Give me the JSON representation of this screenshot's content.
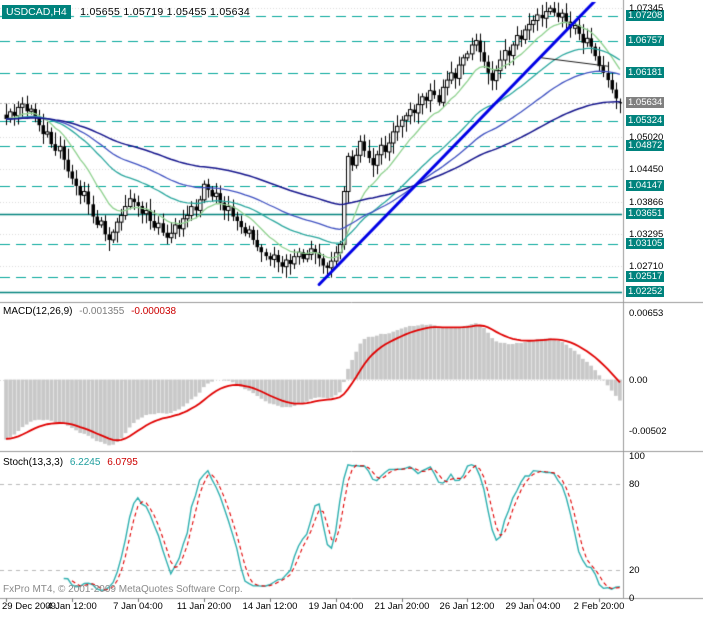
{
  "window": {
    "symbol_title": "USDCAD,H4",
    "quote_text": "1.05655 1.05719 1.05455 1.05634"
  },
  "footer": {
    "copyright": "FxPro MT4, © 2001-2009 MetaQuotes Software Corp."
  },
  "chart_data": {
    "type": "candlestick",
    "symbol": "USDCAD",
    "timeframe": "H4",
    "current_bar": {
      "open": 1.05655,
      "high": 1.05719,
      "low": 1.05455,
      "close": 1.05634
    },
    "current_price_label": "1.05634",
    "y_axis": {
      "range": [
        1.0212,
        1.0738
      ],
      "plain_labels": [
        "1.07345",
        "1.05020",
        "1.04450",
        "1.03866",
        "1.03295",
        "1.02710"
      ]
    },
    "levels": [
      {
        "price": 1.07208,
        "style": "dash"
      },
      {
        "price": 1.06757,
        "style": "dash"
      },
      {
        "price": 1.06181,
        "style": "dash"
      },
      {
        "price": 1.05324,
        "style": "dash"
      },
      {
        "price": 1.04872,
        "style": "dash"
      },
      {
        "price": 1.04147,
        "style": "dash"
      },
      {
        "price": 1.03651,
        "style": "solid"
      },
      {
        "price": 1.03105,
        "style": "dash"
      },
      {
        "price": 1.02517,
        "style": "dash"
      },
      {
        "price": 1.02252,
        "style": "solid"
      }
    ],
    "x_labels": [
      {
        "index": 0,
        "label": "29 Dec 2009"
      },
      {
        "index": 16,
        "label": "4 Jan 12:00"
      },
      {
        "index": 32,
        "label": "7 Jan 04:00"
      },
      {
        "index": 48,
        "label": "11 Jan 20:00"
      },
      {
        "index": 64,
        "label": "14 Jan 12:00"
      },
      {
        "index": 80,
        "label": "19 Jan 04:00"
      },
      {
        "index": 96,
        "label": "21 Jan 20:00"
      },
      {
        "index": 112,
        "label": "26 Jan 12:00"
      },
      {
        "index": 128,
        "label": "29 Jan 04:00"
      },
      {
        "index": 144,
        "label": "2 Feb 20:00"
      }
    ],
    "closes": [
      1.0535,
      1.0548,
      1.0541,
      1.0556,
      1.0562,
      1.0549,
      1.0553,
      1.0538,
      1.0524,
      1.0508,
      1.0512,
      1.049,
      1.0478,
      1.0486,
      1.0462,
      1.0441,
      1.0428,
      1.0415,
      1.0398,
      1.0405,
      1.0382,
      1.036,
      1.0345,
      1.0352,
      1.0328,
      1.0318,
      1.0332,
      1.035,
      1.0362,
      1.0378,
      1.0392,
      1.0386,
      1.0379,
      1.0365,
      1.0371,
      1.0352,
      1.034,
      1.0348,
      1.0331,
      1.0322,
      1.033,
      1.0345,
      1.0338,
      1.0356,
      1.0362,
      1.0378,
      1.0371,
      1.039,
      1.0418,
      1.0408,
      1.0396,
      1.0402,
      1.0385,
      1.0371,
      1.0378,
      1.036,
      1.0352,
      1.0341,
      1.033,
      1.0336,
      1.0318,
      1.0305,
      1.0296,
      1.0289,
      1.0283,
      1.0291,
      1.0278,
      1.027,
      1.0282,
      1.0275,
      1.0288,
      1.0296,
      1.0284,
      1.0292,
      1.0302,
      1.0295,
      1.0285,
      1.0272,
      1.0268,
      1.028,
      1.0295,
      1.031,
      1.0405,
      1.0468,
      1.0452,
      1.047,
      1.0495,
      1.0478,
      1.0465,
      1.0452,
      1.0471,
      1.0488,
      1.0476,
      1.0492,
      1.0512,
      1.0522,
      1.0533,
      1.0541,
      1.0552,
      1.0546,
      1.0561,
      1.0575,
      1.0568,
      1.0586,
      1.0578,
      1.0565,
      1.0592,
      1.0605,
      1.0618,
      1.0608,
      1.0632,
      1.0645,
      1.0652,
      1.0668,
      1.0676,
      1.0655,
      1.0638,
      1.0618,
      1.0604,
      1.0622,
      1.0641,
      1.0658,
      1.0649,
      1.0668,
      1.0685,
      1.0678,
      1.0695,
      1.0705,
      1.0712,
      1.0722,
      1.0716,
      1.0728,
      1.0734,
      1.0726,
      1.0718,
      1.0725,
      1.071,
      1.0698,
      1.0703,
      1.0688,
      1.0672,
      1.068,
      1.0665,
      1.0648,
      1.063,
      1.0618,
      1.0605,
      1.0588,
      1.0572,
      1.0563
    ],
    "moving_averages": [
      {
        "period": 12,
        "color": "#8fd18f",
        "width": 1.3
      },
      {
        "period": 34,
        "color": "#2aa79e",
        "width": 1.3
      },
      {
        "period": 55,
        "color": "#3f51c1",
        "width": 1.3
      },
      {
        "period": 100,
        "color": "#14148c",
        "width": 1.5
      }
    ],
    "trendlines": [
      {
        "from_index": 76,
        "from_price": 1.0238,
        "to_index": 144,
        "to_price": 1.0755,
        "color": "#0000e6",
        "width": 3
      },
      {
        "from_index": 130,
        "from_price": 1.0645,
        "to_index": 146,
        "to_price": 1.063,
        "color": "#1a1a1a",
        "width": 1
      }
    ],
    "colors": {
      "bull": "#ffffff",
      "bear": "#000000",
      "outline": "#000000",
      "level_line": "#00a69a",
      "level_solid": "#00837d",
      "grid": "#d9d9d9",
      "separator": "#9a9a9a",
      "current_line": "#b4b4b4",
      "current_box": "#808080"
    },
    "indicators": {
      "macd": {
        "name": "MACD(12,26,9)",
        "main_value": "-0.001355",
        "signal_value": "-0.000038",
        "fast": 12,
        "slow": 26,
        "signal": 9,
        "range": [
          -0.0068,
          0.0072
        ],
        "axis_labels": [
          "0.00653",
          "0.00",
          "-0.00502"
        ],
        "histogram_color": "#c8c8c8",
        "signal_color": "#e00000"
      },
      "stoch": {
        "name": "Stoch(13,3,3)",
        "main_value": "6.2245",
        "signal_value": "6.0795",
        "k": 13,
        "slowing": 3,
        "d": 3,
        "range": [
          0,
          100
        ],
        "axis_labels": [
          "100",
          "80",
          "20",
          "0"
        ],
        "levels": [
          80,
          20
        ],
        "main_color": "#2fb0b0",
        "signal_color": "#e00000"
      }
    }
  }
}
